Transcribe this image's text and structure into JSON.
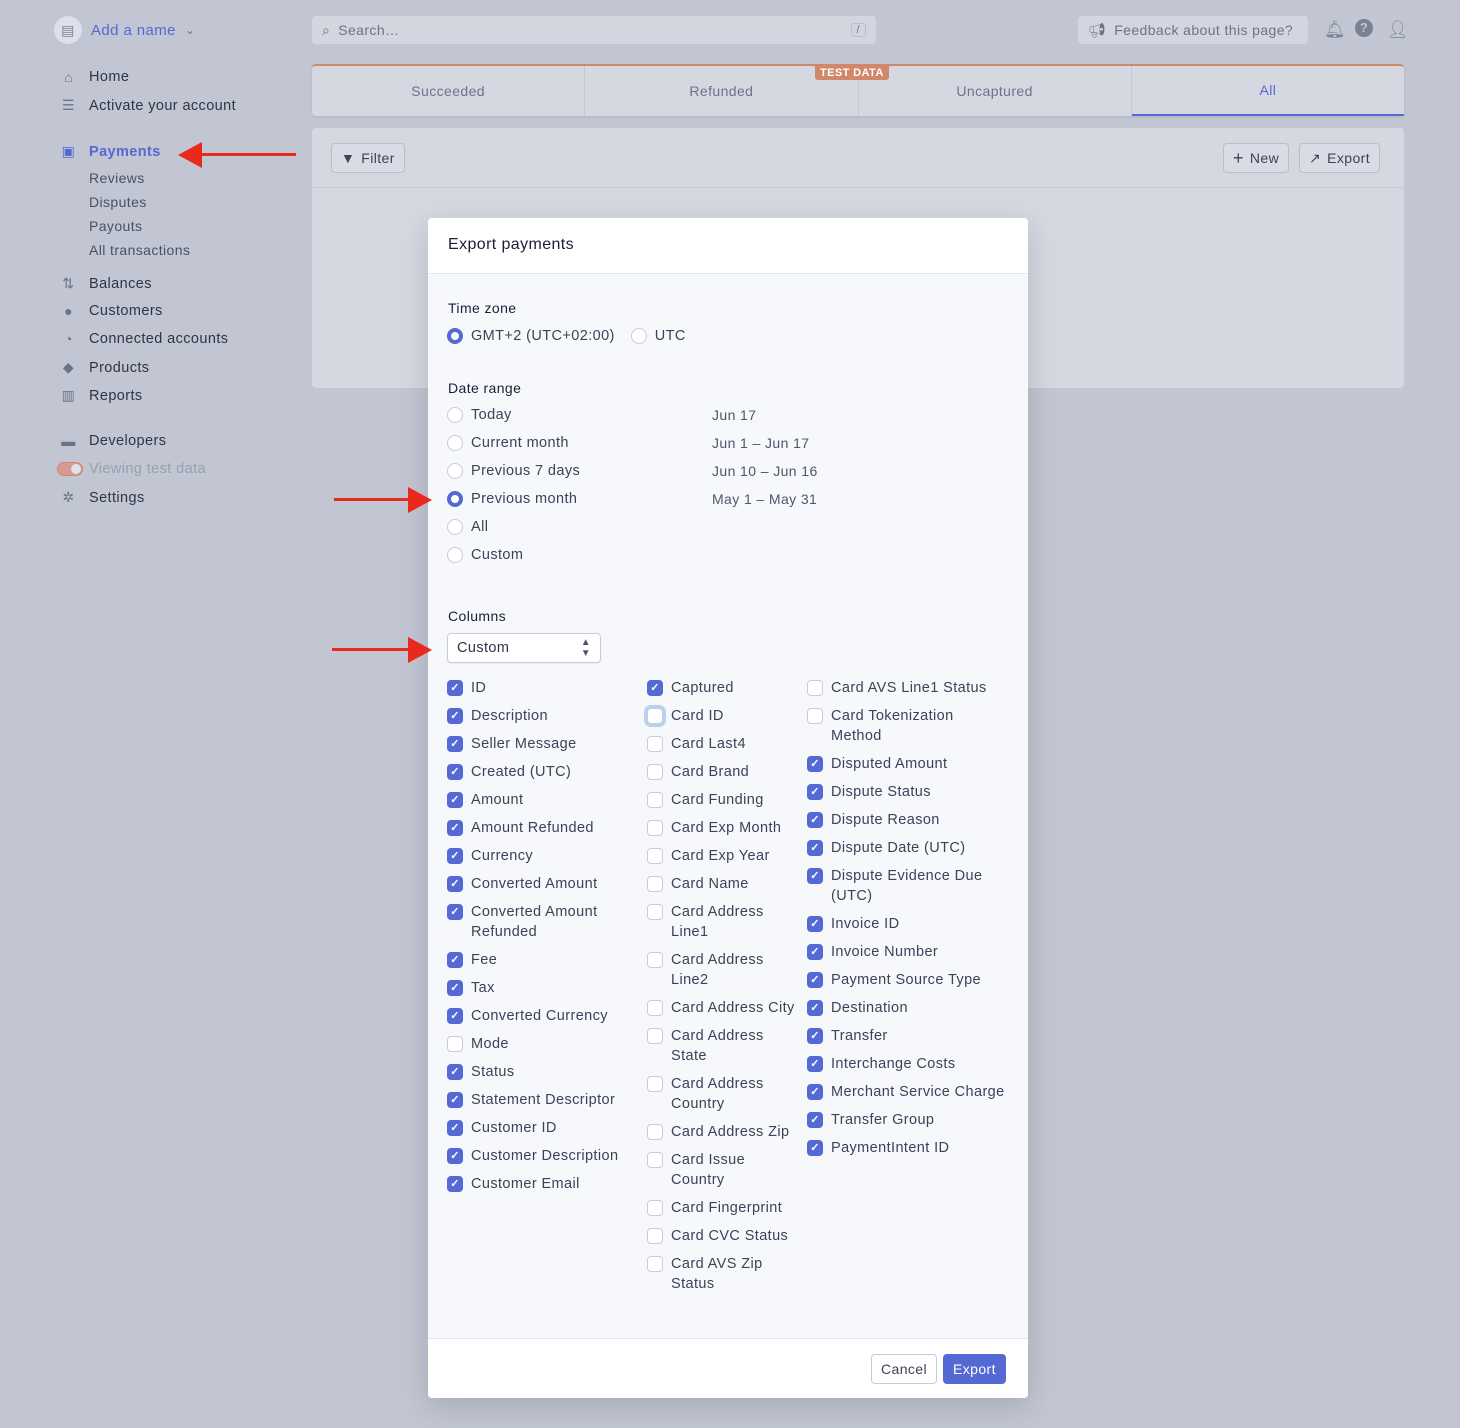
{
  "brand": {
    "name": "Add a name"
  },
  "search": {
    "placeholder": "Search…",
    "shortcut": "/"
  },
  "feedback": "Feedback about this page?",
  "sidebar": {
    "items": [
      {
        "label": "Home",
        "icon": "home-icon"
      },
      {
        "label": "Activate your account",
        "icon": "checklist-icon"
      },
      {
        "label": "Payments",
        "icon": "payments-icon",
        "active": true
      },
      {
        "label": "Balances",
        "icon": "balances-icon"
      },
      {
        "label": "Customers",
        "icon": "customers-icon"
      },
      {
        "label": "Connected accounts",
        "icon": "connected-icon"
      },
      {
        "label": "Products",
        "icon": "products-icon"
      },
      {
        "label": "Reports",
        "icon": "reports-icon"
      },
      {
        "label": "Developers",
        "icon": "terminal-icon"
      },
      {
        "label": "Viewing test data",
        "icon": "toggle"
      },
      {
        "label": "Settings",
        "icon": "gear-icon"
      }
    ],
    "payments_sub": [
      "Reviews",
      "Disputes",
      "Payouts",
      "All transactions"
    ]
  },
  "tabs": [
    "Succeeded",
    "Refunded",
    "Uncaptured",
    "All"
  ],
  "active_tab": "All",
  "test_badge": "TEST DATA",
  "toolbar": {
    "filter": "Filter",
    "new": "New",
    "export": "Export"
  },
  "modal": {
    "title": "Export payments",
    "timezone_label": "Time zone",
    "timezones": [
      {
        "label": "GMT+2 (UTC+02:00)",
        "selected": true
      },
      {
        "label": "UTC",
        "selected": false
      }
    ],
    "date_label": "Date range",
    "dates": [
      {
        "label": "Today",
        "range": "Jun 17",
        "selected": false
      },
      {
        "label": "Current month",
        "range": "Jun 1 – Jun 17",
        "selected": false
      },
      {
        "label": "Previous 7 days",
        "range": "Jun 10 – Jun 16",
        "selected": false
      },
      {
        "label": "Previous month",
        "range": "May 1 – May 31",
        "selected": true
      },
      {
        "label": "All",
        "range": "",
        "selected": false
      },
      {
        "label": "Custom",
        "range": "",
        "selected": false
      }
    ],
    "columns_label": "Columns",
    "columns_select": "Custom",
    "columns": [
      [
        [
          "ID",
          true
        ],
        [
          "Description",
          true
        ],
        [
          "Seller Message",
          true
        ],
        [
          "Created (UTC)",
          true
        ],
        [
          "Amount",
          true
        ],
        [
          "Amount Refunded",
          true
        ],
        [
          "Currency",
          true
        ],
        [
          "Converted Amount",
          true
        ],
        [
          "Converted Amount Refunded",
          true
        ],
        [
          "Fee",
          true
        ],
        [
          "Tax",
          true
        ],
        [
          "Converted Currency",
          true
        ],
        [
          "Mode",
          false
        ],
        [
          "Status",
          true
        ],
        [
          "Statement Descriptor",
          true
        ],
        [
          "Customer ID",
          true
        ],
        [
          "Customer Description",
          true
        ],
        [
          "Customer Email",
          true
        ]
      ],
      [
        [
          "Captured",
          true
        ],
        [
          "Card ID",
          false
        ],
        [
          "Card Last4",
          false
        ],
        [
          "Card Brand",
          false
        ],
        [
          "Card Funding",
          false
        ],
        [
          "Card Exp Month",
          false
        ],
        [
          "Card Exp Year",
          false
        ],
        [
          "Card Name",
          false
        ],
        [
          "Card Address Line1",
          false
        ],
        [
          "Card Address Line2",
          false
        ],
        [
          "Card Address City",
          false
        ],
        [
          "Card Address State",
          false
        ],
        [
          "Card Address Country",
          false
        ],
        [
          "Card Address Zip",
          false
        ],
        [
          "Card Issue Country",
          false
        ],
        [
          "Card Fingerprint",
          false
        ],
        [
          "Card CVC Status",
          false
        ],
        [
          "Card AVS Zip Status",
          false
        ]
      ],
      [
        [
          "Card AVS Line1 Status",
          false
        ],
        [
          "Card Tokenization Method",
          false
        ],
        [
          "Disputed Amount",
          true
        ],
        [
          "Dispute Status",
          true
        ],
        [
          "Dispute Reason",
          true
        ],
        [
          "Dispute Date (UTC)",
          true
        ],
        [
          "Dispute Evidence Due (UTC)",
          true
        ],
        [
          "Invoice ID",
          true
        ],
        [
          "Invoice Number",
          true
        ],
        [
          "Payment Source Type",
          true
        ],
        [
          "Destination",
          true
        ],
        [
          "Transfer",
          true
        ],
        [
          "Interchange Costs",
          true
        ],
        [
          "Merchant Service Charge",
          true
        ],
        [
          "Transfer Group",
          true
        ],
        [
          "PaymentIntent ID",
          true
        ]
      ]
    ],
    "cancel": "Cancel",
    "export": "Export"
  },
  "colors": {
    "accent": "#5469d4",
    "test": "#d0876a",
    "arrow": "#e8291c"
  }
}
